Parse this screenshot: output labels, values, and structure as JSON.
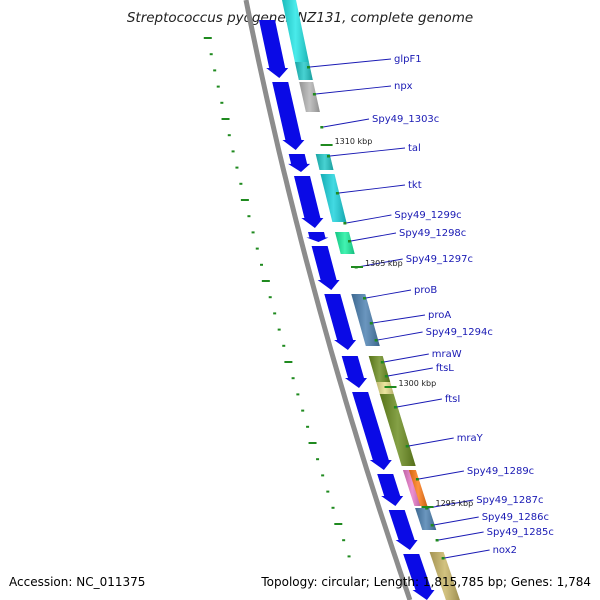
{
  "title": "Streptococcus pyogenes NZ131, complete genome",
  "footer": {
    "accession": "Accession: NC_011375",
    "topology": "Topology: circular; Length: 1,815,785 bp; Genes: 1,784"
  },
  "colors": {
    "background": "#ffffff",
    "backbone": "#8c8c8c",
    "gene_arrow": "#0a0ae6",
    "label": "#1a1ab4",
    "ticks": "#1f8a1f"
  },
  "scale_markers": [
    "1310 kbp",
    "1305 kbp",
    "1300 kbp",
    "1295 kbp"
  ],
  "gene_labels": [
    "glpF1",
    "npx",
    "Spy49_1303c",
    "tal",
    "tkt",
    "Spy49_1299c",
    "Spy49_1298c",
    "Spy49_1297c",
    "proB",
    "proA",
    "Spy49_1294c",
    "mraW",
    "ftsL",
    "ftsI",
    "mraY",
    "Spy49_1289c",
    "Spy49_1287c",
    "Spy49_1286c",
    "Spy49_1285c",
    "nox2"
  ]
}
